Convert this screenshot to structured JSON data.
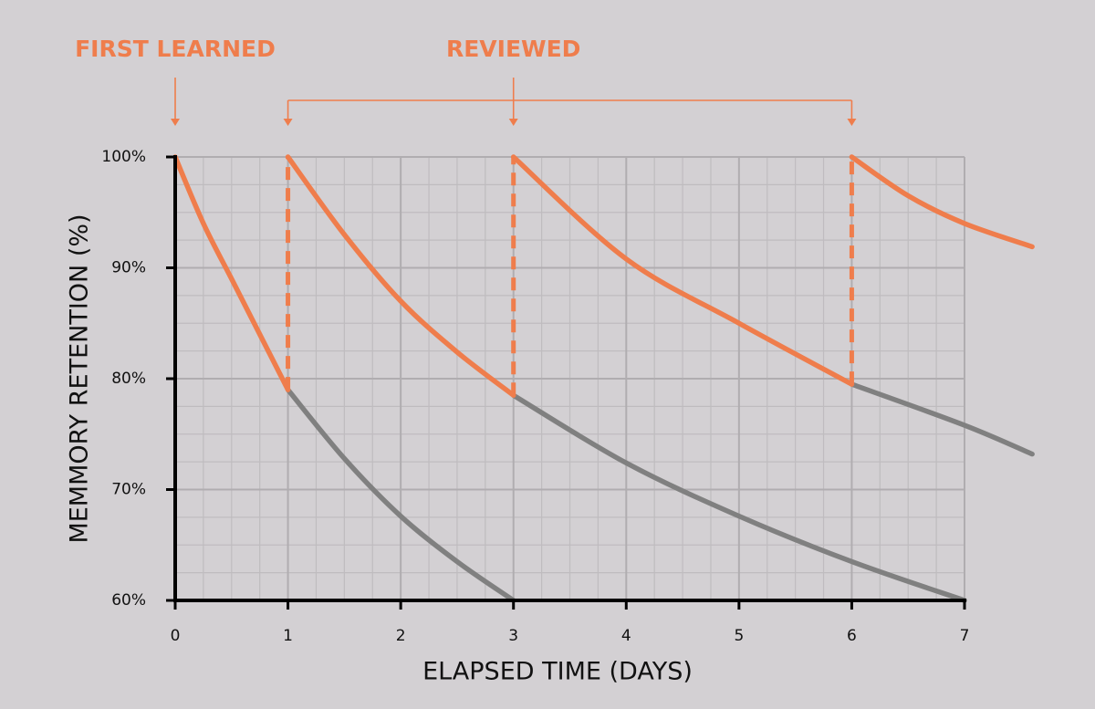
{
  "chart_data": {
    "type": "line",
    "x_label": "ELAPSED TIME (DAYS)",
    "y_label": "MEMMORY RETENTION (%)",
    "xlim": [
      0,
      7
    ],
    "ylim": [
      60,
      100
    ],
    "xticks": [
      0,
      1,
      2,
      3,
      4,
      5,
      6,
      7
    ],
    "yticks": [
      {
        "value": 60,
        "label": "60%"
      },
      {
        "value": 70,
        "label": "70%"
      },
      {
        "value": 80,
        "label": "80%"
      },
      {
        "value": 90,
        "label": "90%"
      },
      {
        "value": 100,
        "label": "100%"
      }
    ],
    "grid": true,
    "minor_grid": {
      "x": 0.25,
      "y": 2.5
    },
    "annotations": [
      {
        "text": "FIRST LEARNED",
        "x": [
          0
        ],
        "color": "#ef7d4c"
      },
      {
        "text": "REVIEWED",
        "x": [
          1,
          3,
          6
        ],
        "color": "#ef7d4c"
      }
    ],
    "series": [
      {
        "color": "#808080",
        "x": [
          1,
          1.5,
          2,
          2.5,
          3
        ],
        "values": [
          79,
          72.8,
          67.6,
          63.5,
          60
        ]
      },
      {
        "color": "#808080",
        "x": [
          3,
          4,
          5,
          6,
          7
        ],
        "values": [
          78.5,
          72.4,
          67.6,
          63.5,
          60
        ]
      },
      {
        "color": "#808080",
        "x": [
          6,
          7,
          7.6
        ],
        "values": [
          79.5,
          75.8,
          73.2
        ]
      },
      {
        "color": "#ef7d4c",
        "x": [
          0,
          0.25,
          0.5,
          0.75,
          1
        ],
        "values": [
          100,
          94,
          89,
          84,
          79
        ]
      },
      {
        "color": "#ef7d4c",
        "x": [
          1,
          1.5,
          2,
          2.5,
          3
        ],
        "values": [
          100,
          93,
          87,
          82.4,
          78.5
        ]
      },
      {
        "color": "#ef7d4c",
        "x": [
          3,
          4,
          5,
          6
        ],
        "values": [
          100,
          90.8,
          85,
          79.5
        ]
      },
      {
        "color": "#ef7d4c",
        "x": [
          6,
          6.5,
          7,
          7.6
        ],
        "values": [
          100,
          96.5,
          94,
          91.9
        ]
      },
      {
        "color": "#ef7d4c",
        "dashed": true,
        "x": [
          1,
          1
        ],
        "values": [
          79,
          100
        ]
      },
      {
        "color": "#ef7d4c",
        "dashed": true,
        "x": [
          3,
          3
        ],
        "values": [
          78.5,
          100
        ]
      },
      {
        "color": "#ef7d4c",
        "dashed": true,
        "x": [
          6,
          6
        ],
        "values": [
          79.5,
          100
        ]
      }
    ]
  }
}
